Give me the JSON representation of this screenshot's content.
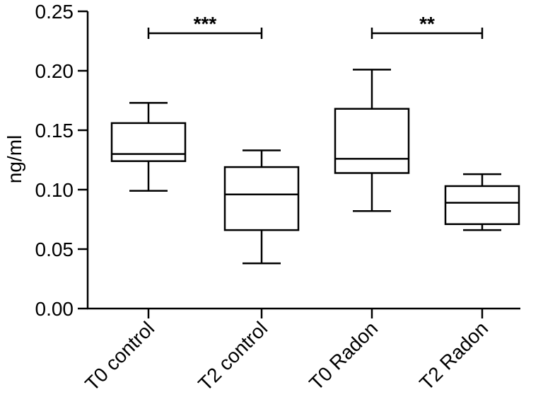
{
  "chart_data": {
    "type": "box",
    "ylabel": "ng/ml",
    "xlabel": "",
    "title": "",
    "ylim": [
      0,
      0.25
    ],
    "yticks": [
      "0.00",
      "0.05",
      "0.10",
      "0.15",
      "0.20",
      "0.25"
    ],
    "categories": [
      "T0 control",
      "T2 control",
      "T0 Radon",
      "T2 Radon"
    ],
    "boxes": [
      {
        "category": "T0 control",
        "min": 0.099,
        "q1": 0.124,
        "median": 0.13,
        "q3": 0.156,
        "max": 0.173
      },
      {
        "category": "T2 control",
        "min": 0.038,
        "q1": 0.066,
        "median": 0.096,
        "q3": 0.119,
        "max": 0.133
      },
      {
        "category": "T0 Radon",
        "min": 0.082,
        "q1": 0.114,
        "median": 0.126,
        "q3": 0.168,
        "max": 0.201
      },
      {
        "category": "T2 Radon",
        "min": 0.066,
        "q1": 0.071,
        "median": 0.089,
        "q3": 0.103,
        "max": 0.113
      }
    ],
    "significance": [
      {
        "from": "T0 control",
        "to": "T2 control",
        "label": "***"
      },
      {
        "from": "T0 Radon",
        "to": "T2 Radon",
        "label": "**"
      }
    ],
    "grid": false,
    "legend": "none"
  }
}
